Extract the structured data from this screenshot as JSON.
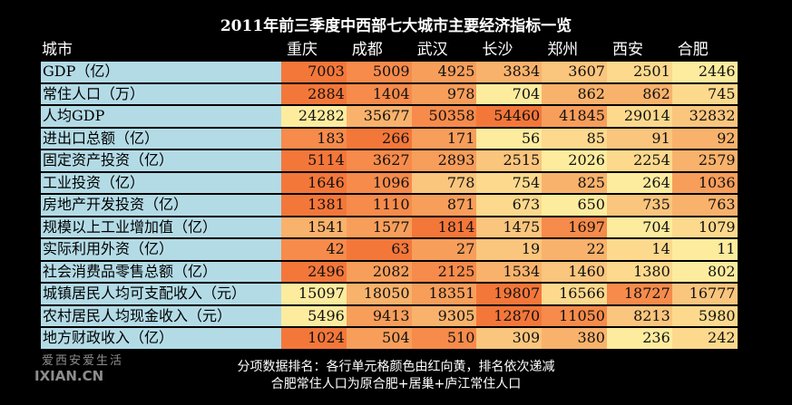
{
  "title": "2011年前三季度中西部七大城市主要经济指标一览",
  "header": {
    "label": "城市",
    "cities": [
      "重庆",
      "成都",
      "武汉",
      "长沙",
      "郑州",
      "西安",
      "合肥"
    ]
  },
  "colors": {
    "high": "#f4773a",
    "low": "#fdec9e",
    "label_bg": "#b3dbe6"
  },
  "rows": [
    {
      "label": "GDP（亿）",
      "values": [
        7003,
        5009,
        4925,
        3834,
        3607,
        2501,
        2446
      ]
    },
    {
      "label": "常住人口（万）",
      "values": [
        2884,
        1404,
        978,
        704,
        862,
        862,
        745
      ]
    },
    {
      "label": "人均GDP",
      "values": [
        24282,
        35677,
        50358,
        54460,
        41845,
        29014,
        32832
      ]
    },
    {
      "label": "进出口总额（亿）",
      "values": [
        183,
        266,
        171,
        56,
        85,
        91,
        92
      ]
    },
    {
      "label": "固定资产投资（亿）",
      "values": [
        5114,
        3627,
        2893,
        2515,
        2026,
        2254,
        2579
      ]
    },
    {
      "label": "工业投资（亿）",
      "values": [
        1646,
        1096,
        778,
        754,
        825,
        264,
        1036
      ]
    },
    {
      "label": "房地产开发投资（亿）",
      "values": [
        1381,
        1110,
        871,
        673,
        650,
        735,
        763
      ]
    },
    {
      "label": "规模以上工业增加值（亿）",
      "values": [
        1541,
        1577,
        1814,
        1475,
        1697,
        704,
        1079
      ]
    },
    {
      "label": "实际利用外资（亿）",
      "values": [
        42,
        63,
        27,
        19,
        22,
        14,
        11
      ]
    },
    {
      "label": "社会消费品零售总额（亿）",
      "values": [
        2496,
        2082,
        2125,
        1534,
        1460,
        1380,
        802
      ]
    },
    {
      "label": "城镇居民人均可支配收入（元）",
      "values": [
        15097,
        18050,
        18351,
        19807,
        16566,
        18727,
        16777
      ]
    },
    {
      "label": "农村居民人均现金收入（元）",
      "values": [
        5496,
        9413,
        9305,
        12870,
        11050,
        8213,
        5980
      ]
    },
    {
      "label": "地方财政收入（亿）",
      "values": [
        1024,
        504,
        510,
        309,
        380,
        236,
        242
      ]
    }
  ],
  "notes": [
    "分项数据排名：各行单元格颜色由红向黄，排名依次递减",
    "合肥常住人口为原合肥+居巢+庐江常住人口"
  ],
  "logo": {
    "line1": "爱西安爱生活",
    "line2": "IXIAN.CN"
  }
}
